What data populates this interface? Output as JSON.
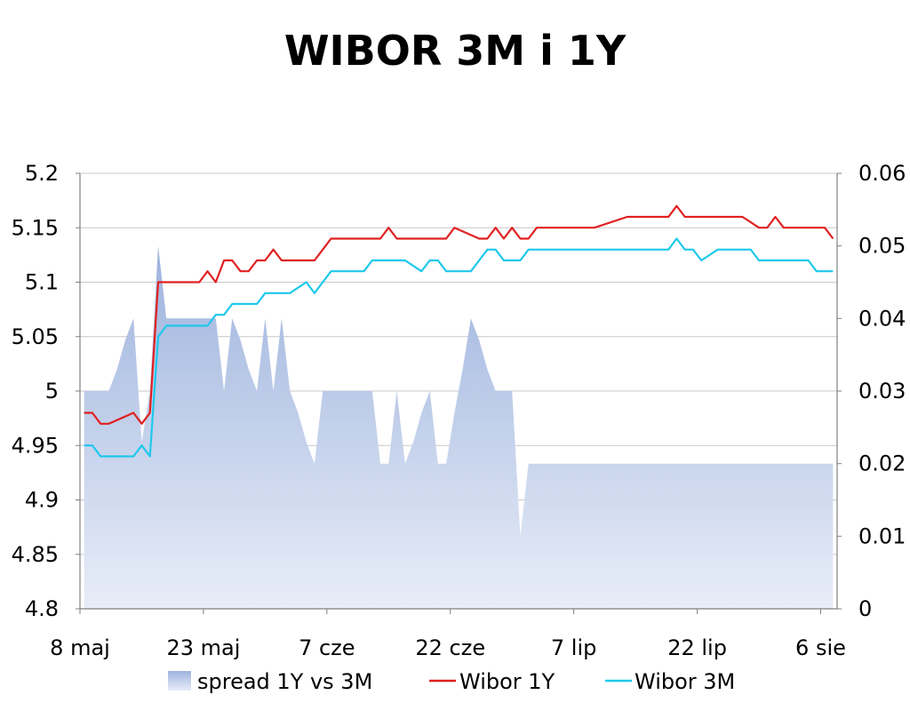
{
  "chart_data": {
    "type": "line",
    "title": "WIBOR 3M i 1Y",
    "x_ticks": [
      "8 maj",
      "23 maj",
      "7 cze",
      "22 cze",
      "7 lip",
      "22 lip",
      "6 sie"
    ],
    "y_left": {
      "lim": [
        4.8,
        5.2
      ],
      "ticks": [
        "5.2",
        "5.15",
        "5.1",
        "5.05",
        "5",
        "4.95",
        "4.9",
        "4.85",
        "4.8"
      ]
    },
    "y_right": {
      "lim": [
        0,
        0.06
      ],
      "ticks": [
        "0.06",
        "0.05",
        "0.04",
        "0.03",
        "0.02",
        "0.01",
        "0"
      ]
    },
    "grid": true,
    "legend_position": "bottom",
    "series": [
      {
        "name": "spread 1Y vs 3M",
        "kind": "area",
        "axis": "right",
        "color": "#b4c6e7",
        "x": [
          "2008-05-08",
          "2008-05-09",
          "2008-05-10",
          "2008-05-11",
          "2008-05-12",
          "2008-05-13",
          "2008-05-14",
          "2008-05-15",
          "2008-05-16",
          "2008-05-17",
          "2008-05-18",
          "2008-05-19",
          "2008-05-20",
          "2008-05-21",
          "2008-05-22",
          "2008-05-23",
          "2008-05-24",
          "2008-05-25",
          "2008-05-26",
          "2008-05-27",
          "2008-05-28",
          "2008-05-29",
          "2008-05-30",
          "2008-05-31",
          "2008-06-01",
          "2008-06-02",
          "2008-06-03",
          "2008-06-04",
          "2008-06-05",
          "2008-06-06",
          "2008-06-07",
          "2008-06-08",
          "2008-06-09",
          "2008-06-10",
          "2008-06-11",
          "2008-06-12",
          "2008-06-13",
          "2008-06-14",
          "2008-06-15",
          "2008-06-16",
          "2008-06-17",
          "2008-06-18",
          "2008-06-19",
          "2008-06-20",
          "2008-06-21",
          "2008-06-22",
          "2008-06-23",
          "2008-06-24",
          "2008-06-25",
          "2008-06-26",
          "2008-06-27",
          "2008-06-28",
          "2008-06-29",
          "2008-06-30",
          "2008-07-01",
          "2008-07-02",
          "2008-07-03",
          "2008-07-04",
          "2008-07-05",
          "2008-07-06",
          "2008-07-07",
          "2008-07-08",
          "2008-07-09",
          "2008-07-10",
          "2008-07-11",
          "2008-07-12",
          "2008-07-13",
          "2008-07-14",
          "2008-07-15",
          "2008-07-16",
          "2008-07-17",
          "2008-07-18",
          "2008-07-19",
          "2008-07-20",
          "2008-07-21",
          "2008-07-22",
          "2008-07-23",
          "2008-07-24",
          "2008-07-25",
          "2008-07-26",
          "2008-07-27",
          "2008-07-28",
          "2008-07-29",
          "2008-07-30",
          "2008-07-31",
          "2008-08-01",
          "2008-08-02",
          "2008-08-03",
          "2008-08-04",
          "2008-08-05",
          "2008-08-06",
          "2008-08-07"
        ],
        "values": [
          0.03,
          0.03,
          0.03,
          0.03,
          0.033,
          0.037,
          0.04,
          0.023,
          0.03,
          0.05,
          0.04,
          0.04,
          0.04,
          0.04,
          0.04,
          0.04,
          0.04,
          0.03,
          0.04,
          0.037,
          0.033,
          0.03,
          0.04,
          0.03,
          0.04,
          0.03,
          0.027,
          0.023,
          0.02,
          0.03,
          0.03,
          0.03,
          0.03,
          0.03,
          0.03,
          0.03,
          0.02,
          0.02,
          0.03,
          0.02,
          0.023,
          0.027,
          0.03,
          0.02,
          0.02,
          0.027,
          0.033,
          0.04,
          0.037,
          0.033,
          0.03,
          0.03,
          0.03,
          0.01,
          0.02,
          0.02,
          0.02,
          0.02,
          0.02,
          0.02,
          0.02,
          0.02,
          0.02,
          0.02,
          0.02,
          0.02,
          0.02,
          0.02,
          0.02,
          0.02,
          0.02,
          0.02,
          0.02,
          0.02,
          0.02,
          0.02,
          0.02,
          0.02,
          0.02,
          0.02,
          0.02,
          0.02,
          0.02,
          0.02,
          0.02,
          0.02,
          0.02,
          0.02,
          0.02,
          0.02,
          0.02,
          0.02
        ]
      },
      {
        "name": "Wibor 1Y",
        "kind": "line",
        "axis": "left",
        "color": "#e02020",
        "x": [
          "2008-05-08",
          "2008-05-09",
          "2008-05-10",
          "2008-05-11",
          "2008-05-14",
          "2008-05-15",
          "2008-05-16",
          "2008-05-17",
          "2008-05-18",
          "2008-05-21",
          "2008-05-22",
          "2008-05-23",
          "2008-05-24",
          "2008-05-25",
          "2008-05-26",
          "2008-05-27",
          "2008-05-28",
          "2008-05-29",
          "2008-05-30",
          "2008-05-31",
          "2008-06-01",
          "2008-06-02",
          "2008-06-05",
          "2008-06-06",
          "2008-06-07",
          "2008-06-08",
          "2008-06-09",
          "2008-06-13",
          "2008-06-14",
          "2008-06-15",
          "2008-06-20",
          "2008-06-21",
          "2008-06-22",
          "2008-06-25",
          "2008-06-26",
          "2008-06-27",
          "2008-06-28",
          "2008-06-29",
          "2008-06-30",
          "2008-07-01",
          "2008-07-02",
          "2008-07-04",
          "2008-07-05",
          "2008-07-08",
          "2008-07-09",
          "2008-07-13",
          "2008-07-14",
          "2008-07-18",
          "2008-07-19",
          "2008-07-20",
          "2008-07-21",
          "2008-07-22",
          "2008-07-23",
          "2008-07-24",
          "2008-07-27",
          "2008-07-28",
          "2008-07-29",
          "2008-07-30",
          "2008-07-31",
          "2008-08-01",
          "2008-08-02",
          "2008-08-05",
          "2008-08-06",
          "2008-08-07"
        ],
        "values": [
          4.98,
          4.98,
          4.97,
          4.97,
          4.98,
          4.97,
          4.98,
          5.1,
          5.1,
          5.1,
          5.1,
          5.11,
          5.1,
          5.12,
          5.12,
          5.11,
          5.11,
          5.12,
          5.12,
          5.13,
          5.12,
          5.12,
          5.12,
          5.13,
          5.14,
          5.14,
          5.14,
          5.14,
          5.15,
          5.14,
          5.14,
          5.14,
          5.15,
          5.14,
          5.14,
          5.15,
          5.14,
          5.15,
          5.14,
          5.14,
          5.15,
          5.15,
          5.15,
          5.15,
          5.15,
          5.16,
          5.16,
          5.16,
          5.17,
          5.16,
          5.16,
          5.16,
          5.16,
          5.16,
          5.16,
          5.155,
          5.15,
          5.15,
          5.16,
          5.15,
          5.15,
          5.15,
          5.15,
          5.14
        ]
      },
      {
        "name": "Wibor 3M",
        "kind": "line",
        "axis": "left",
        "color": "#1ec8ec",
        "x": [
          "2008-05-08",
          "2008-05-09",
          "2008-05-10",
          "2008-05-11",
          "2008-05-14",
          "2008-05-15",
          "2008-05-16",
          "2008-05-17",
          "2008-05-18",
          "2008-05-23",
          "2008-05-24",
          "2008-05-25",
          "2008-05-26",
          "2008-05-29",
          "2008-05-30",
          "2008-05-31",
          "2008-06-01",
          "2008-06-02",
          "2008-06-04",
          "2008-06-05",
          "2008-06-06",
          "2008-06-07",
          "2008-06-08",
          "2008-06-11",
          "2008-06-12",
          "2008-06-13",
          "2008-06-14",
          "2008-06-15",
          "2008-06-16",
          "2008-06-18",
          "2008-06-19",
          "2008-06-20",
          "2008-06-21",
          "2008-06-22",
          "2008-06-23",
          "2008-06-24",
          "2008-06-25",
          "2008-06-26",
          "2008-06-27",
          "2008-06-28",
          "2008-06-29",
          "2008-06-30",
          "2008-07-01",
          "2008-07-02",
          "2008-07-04",
          "2008-07-05",
          "2008-07-08",
          "2008-07-16",
          "2008-07-18",
          "2008-07-19",
          "2008-07-20",
          "2008-07-21",
          "2008-07-22",
          "2008-07-24",
          "2008-07-27",
          "2008-07-28",
          "2008-07-29",
          "2008-07-30",
          "2008-07-31",
          "2008-08-01",
          "2008-08-02",
          "2008-08-04",
          "2008-08-05",
          "2008-08-06",
          "2008-08-07"
        ],
        "values": [
          4.95,
          4.95,
          4.94,
          4.94,
          4.94,
          4.95,
          4.94,
          5.05,
          5.06,
          5.06,
          5.07,
          5.07,
          5.08,
          5.08,
          5.09,
          5.09,
          5.09,
          5.09,
          5.1,
          5.09,
          5.1,
          5.11,
          5.11,
          5.11,
          5.12,
          5.12,
          5.12,
          5.12,
          5.12,
          5.11,
          5.12,
          5.12,
          5.11,
          5.11,
          5.11,
          5.11,
          5.12,
          5.13,
          5.13,
          5.12,
          5.12,
          5.12,
          5.13,
          5.13,
          5.13,
          5.13,
          5.13,
          5.13,
          5.13,
          5.14,
          5.13,
          5.13,
          5.12,
          5.13,
          5.13,
          5.13,
          5.12,
          5.12,
          5.12,
          5.12,
          5.12,
          5.12,
          5.11,
          5.11,
          5.11
        ]
      }
    ]
  }
}
